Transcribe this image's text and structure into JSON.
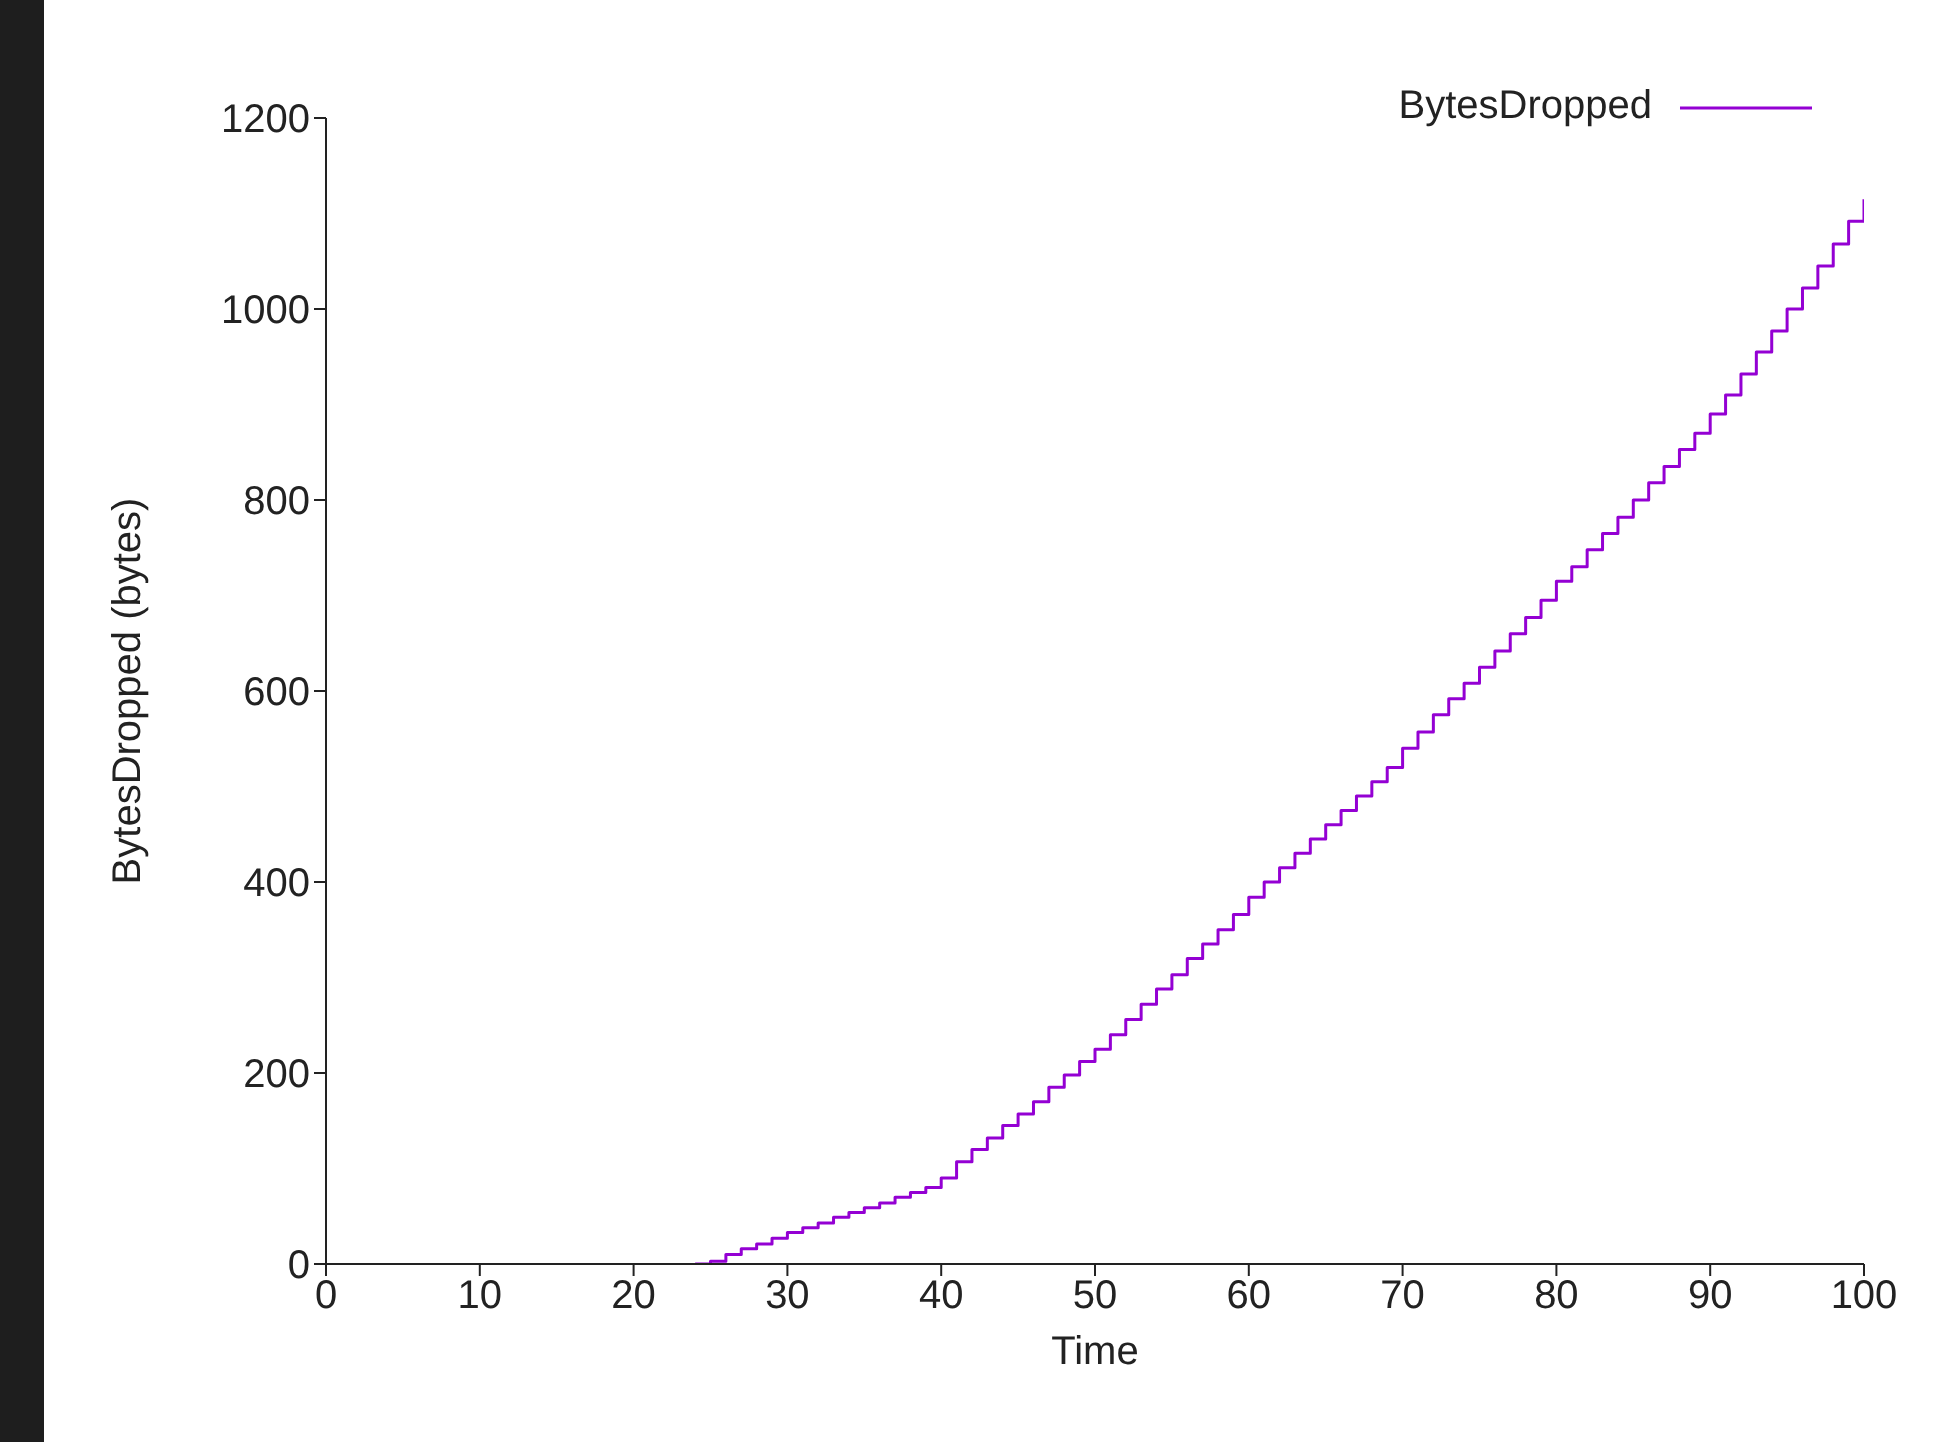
{
  "chart_data": {
    "type": "step",
    "xlabel": "Time",
    "ylabel": "BytesDropped (bytes)",
    "x": [
      24,
      25,
      26,
      27,
      28,
      29,
      30,
      31,
      32,
      33,
      34,
      35,
      36,
      37,
      38,
      39,
      40,
      41,
      42,
      43,
      44,
      45,
      46,
      47,
      48,
      49,
      50,
      51,
      52,
      53,
      54,
      55,
      56,
      57,
      58,
      59,
      60,
      61,
      62,
      63,
      64,
      65,
      66,
      67,
      68,
      69,
      70,
      71,
      72,
      73,
      74,
      75,
      76,
      77,
      78,
      79,
      80,
      81,
      82,
      83,
      84,
      85,
      86,
      87,
      88,
      89,
      90,
      91,
      92,
      93,
      94,
      95,
      96,
      97,
      98,
      99,
      100
    ],
    "series": [
      {
        "name": "BytesDropped",
        "color": "#9400d3",
        "values": [
          0,
          3,
          10,
          16,
          21,
          27,
          33,
          38,
          43,
          49,
          54,
          59,
          64,
          70,
          75,
          80,
          90,
          107,
          120,
          132,
          145,
          157,
          170,
          185,
          198,
          212,
          225,
          240,
          256,
          272,
          288,
          303,
          320,
          335,
          350,
          366,
          384,
          400,
          415,
          430,
          445,
          460,
          475,
          490,
          505,
          520,
          540,
          557,
          575,
          592,
          608,
          625,
          642,
          660,
          677,
          695,
          715,
          730,
          748,
          765,
          782,
          800,
          818,
          835,
          853,
          870,
          890,
          910,
          932,
          955,
          977,
          1000,
          1022,
          1045,
          1068,
          1092,
          1115
        ]
      }
    ],
    "xlim": [
      0,
      100
    ],
    "xticks": [
      0,
      10,
      20,
      30,
      40,
      50,
      60,
      70,
      80,
      90,
      100
    ],
    "ylim": [
      0,
      1200
    ],
    "yticks": [
      0,
      200,
      400,
      600,
      800,
      1000,
      1200
    ],
    "grid": false,
    "legend": "top right"
  }
}
